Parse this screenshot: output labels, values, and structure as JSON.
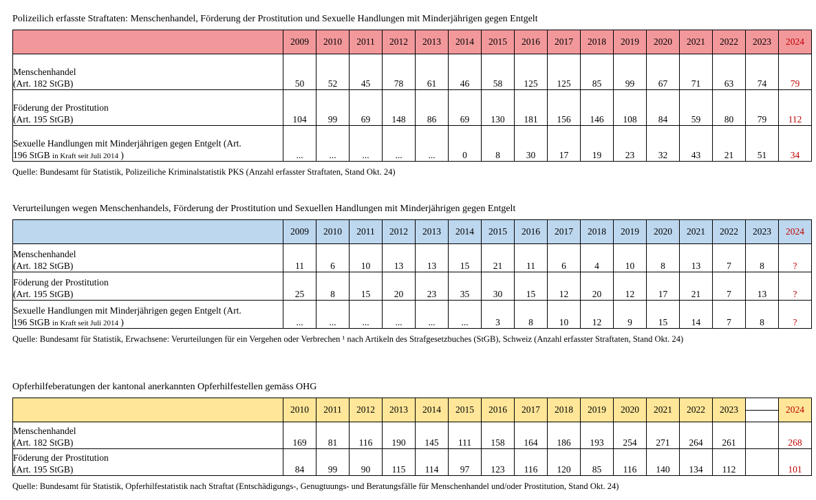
{
  "tables": [
    {
      "title": "Polizeilich erfasste Straftaten: Menschenhandel, Förderung der Prostitution und Sexuelle Handlungen mit Minderjährigen gegen Entgelt",
      "header_color": "#F2989B",
      "accent_red": "#C00000",
      "years": [
        "2009",
        "2010",
        "2011",
        "2012",
        "2013",
        "2014",
        "2015",
        "2016",
        "2017",
        "2018",
        "2019",
        "2020",
        "2021",
        "2022",
        "2023",
        "2024"
      ],
      "rows": [
        {
          "label1": "Menschenhandel",
          "label2": "(Art. 182 StGB)",
          "label2_small": "",
          "label2_tail": "",
          "values": [
            "50",
            "52",
            "45",
            "78",
            "61",
            "46",
            "58",
            "125",
            "125",
            "85",
            "99",
            "67",
            "71",
            "63",
            "74",
            "79"
          ]
        },
        {
          "label1": "Föderung der Prostitution",
          "label2": "(Art. 195 StGB)",
          "label2_small": "",
          "label2_tail": "",
          "values": [
            "104",
            "99",
            "69",
            "148",
            "86",
            "69",
            "130",
            "181",
            "156",
            "146",
            "108",
            "84",
            "59",
            "80",
            "79",
            "112"
          ]
        },
        {
          "label1": "Sexuelle Handlungen mit Minderjährigen gegen Entgelt (Art.",
          "label2": "196 StGB ",
          "label2_small": "in Kraft seit Juli 2014",
          "label2_tail": " )",
          "values": [
            "...",
            "...",
            "...",
            "...",
            "...",
            "0",
            "8",
            "30",
            "17",
            "19",
            "23",
            "32",
            "43",
            "21",
            "51",
            "34"
          ]
        }
      ],
      "source": "Quelle: Bundesamt für Statistik, Polizeiliche Kriminalstatistik PKS (Anzahl erfasster Straftaten, Stand Okt. 24)"
    },
    {
      "title": "Verurteilungen wegen Menschenhandels, Förderung der Prostitution und Sexuellen Handlungen mit Minderjährigen gegen Entgelt",
      "header_color": "#BDD7EE",
      "accent_red": "#C00000",
      "years": [
        "2009",
        "2010",
        "2011",
        "2012",
        "2013",
        "2014",
        "2015",
        "2016",
        "2017",
        "2018",
        "2019",
        "2020",
        "2021",
        "2022",
        "2023",
        "2024"
      ],
      "rows": [
        {
          "label1": "Menschenhandel",
          "label2": "(Art. 182 StGB)",
          "label2_small": "",
          "label2_tail": "",
          "values": [
            "11",
            "6",
            "10",
            "13",
            "13",
            "15",
            "21",
            "11",
            "6",
            "4",
            "10",
            "8",
            "13",
            "7",
            "8",
            "?"
          ]
        },
        {
          "label1": "Föderung der Prostitution",
          "label2": "(Art. 195 StGB)",
          "label2_small": "",
          "label2_tail": "",
          "values": [
            "25",
            "8",
            "15",
            "20",
            "23",
            "35",
            "30",
            "15",
            "12",
            "20",
            "12",
            "17",
            "21",
            "7",
            "13",
            "?"
          ]
        },
        {
          "label1": "Sexuelle Handlungen mit Minderjährigen gegen Entgelt (Art.",
          "label2": "196 StGB ",
          "label2_small": "in Kraft seit Juli 2014",
          "label2_tail": " )",
          "values": [
            "...",
            "...",
            "...",
            "...",
            "...",
            "...",
            "3",
            "8",
            "10",
            "12",
            "9",
            "15",
            "14",
            "7",
            "8",
            "?"
          ]
        }
      ],
      "source": "Quelle: Bundesamt für Statistik, Erwachsene: Verurteilungen für ein Vergehen oder Verbrechen ¹ nach Artikeln des Strafgesetzbuches (StGB), Schweiz (Anzahl erfasster Straftaten, Stand Okt. 24)"
    },
    {
      "title": "Opferhilfeberatungen der kantonal anerkannten Opferhilfestellen gemäss OHG",
      "header_color": "#FFE699",
      "accent_red": "#C00000",
      "years": [
        "2010",
        "2011",
        "2012",
        "2013",
        "2014",
        "2015",
        "2016",
        "2017",
        "2018",
        "2019",
        "2020",
        "2021",
        "2022",
        "2023",
        "",
        "2024"
      ],
      "rows": [
        {
          "label1": "Menschenhandel",
          "label2": "(Art. 182 StGB)",
          "label2_small": "",
          "label2_tail": "",
          "values": [
            "169",
            "81",
            "116",
            "190",
            "145",
            "111",
            "158",
            "164",
            "186",
            "193",
            "254",
            "271",
            "264",
            "261",
            "",
            "268"
          ]
        },
        {
          "label1": "Föderung der Prostitution",
          "label2": "(Art. 195 StGB)",
          "label2_small": "",
          "label2_tail": "",
          "values": [
            "84",
            "99",
            "90",
            "115",
            "114",
            "97",
            "123",
            "116",
            "120",
            "85",
            "116",
            "140",
            "134",
            "112",
            "",
            "101"
          ]
        }
      ],
      "source": "Quelle: Bundesamt für Statistik, Opferhilfestatistik nach Straftat (Entschädigungs-, Genugtuungs- und Beratungsfälle für Menschenhandel und/oder Prostitution, Stand Okt. 24)"
    }
  ]
}
